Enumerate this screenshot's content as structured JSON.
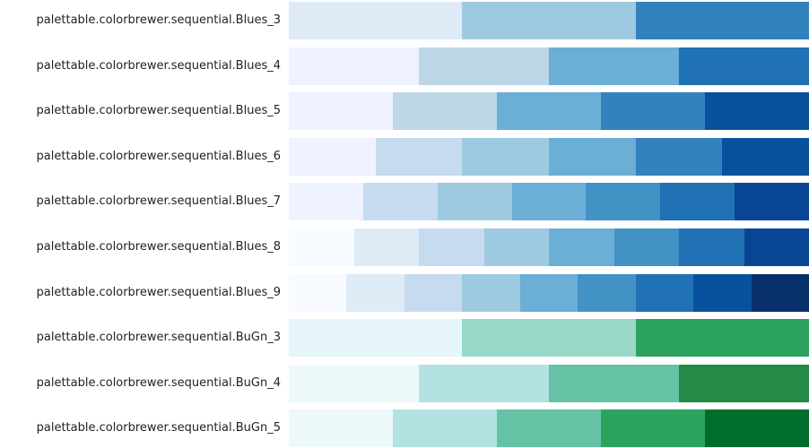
{
  "palettes": [
    {
      "name": "palettable.colorbrewer.sequential.Blues_3",
      "colors": [
        "#deebf7",
        "#9ecae1",
        "#3182bd"
      ]
    },
    {
      "name": "palettable.colorbrewer.sequential.Blues_4",
      "colors": [
        "#eff3ff",
        "#bdd7e7",
        "#6baed6",
        "#2171b5"
      ]
    },
    {
      "name": "palettable.colorbrewer.sequential.Blues_5",
      "colors": [
        "#eff3ff",
        "#bdd7e7",
        "#6baed6",
        "#3182bd",
        "#08519c"
      ]
    },
    {
      "name": "palettable.colorbrewer.sequential.Blues_6",
      "colors": [
        "#eff3ff",
        "#c6dbef",
        "#9ecae1",
        "#6baed6",
        "#3182bd",
        "#08519c"
      ]
    },
    {
      "name": "palettable.colorbrewer.sequential.Blues_7",
      "colors": [
        "#eff3ff",
        "#c6dbef",
        "#9ecae1",
        "#6baed6",
        "#4292c6",
        "#2171b5",
        "#084594"
      ]
    },
    {
      "name": "palettable.colorbrewer.sequential.Blues_8",
      "colors": [
        "#f7fbff",
        "#deebf7",
        "#c6dbef",
        "#9ecae1",
        "#6baed6",
        "#4292c6",
        "#2171b5",
        "#084594"
      ]
    },
    {
      "name": "palettable.colorbrewer.sequential.Blues_9",
      "colors": [
        "#f7fbff",
        "#deebf7",
        "#c6dbef",
        "#9ecae1",
        "#6baed6",
        "#4292c6",
        "#2171b5",
        "#08519c",
        "#08306b"
      ]
    },
    {
      "name": "palettable.colorbrewer.sequential.BuGn_3",
      "colors": [
        "#e5f5f9",
        "#99d8c9",
        "#2ca25f"
      ]
    },
    {
      "name": "palettable.colorbrewer.sequential.BuGn_4",
      "colors": [
        "#edf8fb",
        "#b2e2e2",
        "#66c2a4",
        "#238b45"
      ]
    },
    {
      "name": "palettable.colorbrewer.sequential.BuGn_5",
      "colors": [
        "#edf8fb",
        "#b2e2e2",
        "#66c2a4",
        "#2ca25f",
        "#006d2c"
      ]
    }
  ]
}
